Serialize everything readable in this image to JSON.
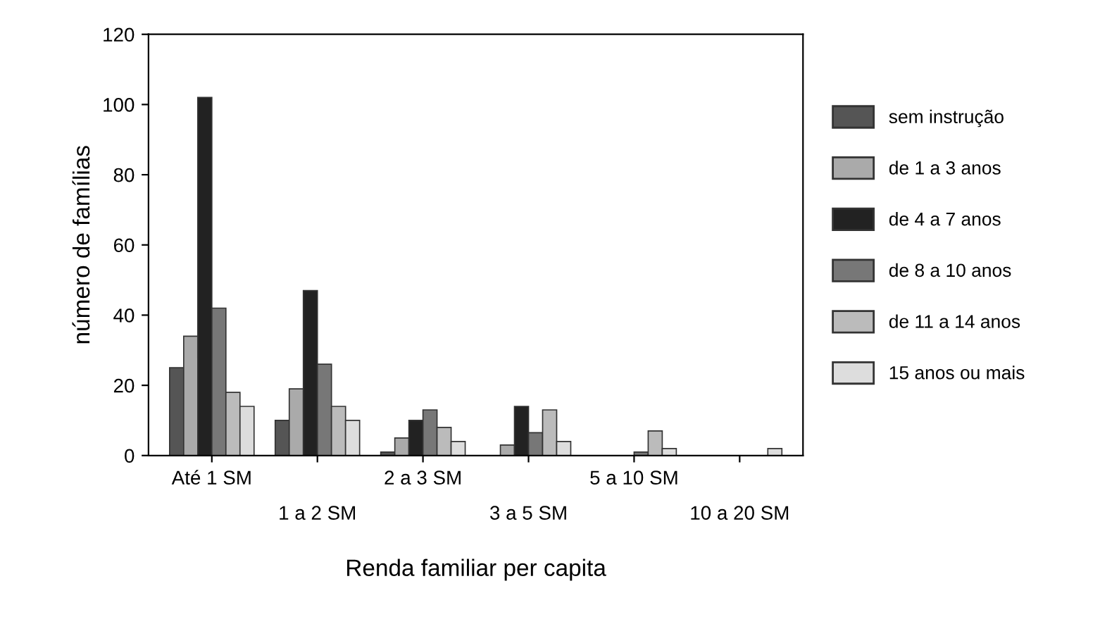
{
  "chart_data": {
    "type": "bar",
    "categories": [
      "Até 1 SM",
      "1 a 2 SM",
      "2 a 3 SM",
      "3 a 5 SM",
      "5 a 10 SM",
      "10 a 20 SM"
    ],
    "series": [
      {
        "name": "sem instrução",
        "color": "#555555",
        "values": [
          25,
          10,
          1,
          0,
          0,
          0
        ]
      },
      {
        "name": "de 1 a 3 anos",
        "color": "#aaaaaa",
        "values": [
          34,
          19,
          5,
          3,
          0,
          0
        ]
      },
      {
        "name": "de 4 a 7 anos",
        "color": "#222222",
        "values": [
          102,
          47,
          10,
          14,
          0,
          0
        ]
      },
      {
        "name": "de 8 a 10 anos",
        "color": "#777777",
        "values": [
          42,
          26,
          13,
          6.5,
          1,
          0
        ]
      },
      {
        "name": "de 11 a 14 anos",
        "color": "#bbbbbb",
        "values": [
          18,
          14,
          8,
          13,
          7,
          0
        ]
      },
      {
        "name": "15 anos ou mais",
        "color": "#dddddd",
        "values": [
          14,
          10,
          4,
          4,
          2,
          2
        ]
      }
    ],
    "ylabel": "número de famílias",
    "xlabel": "Renda familiar per capita",
    "ylim": [
      0,
      120
    ],
    "yticks": [
      0,
      20,
      40,
      60,
      80,
      100,
      120
    ],
    "grid": false,
    "legend": "right"
  }
}
